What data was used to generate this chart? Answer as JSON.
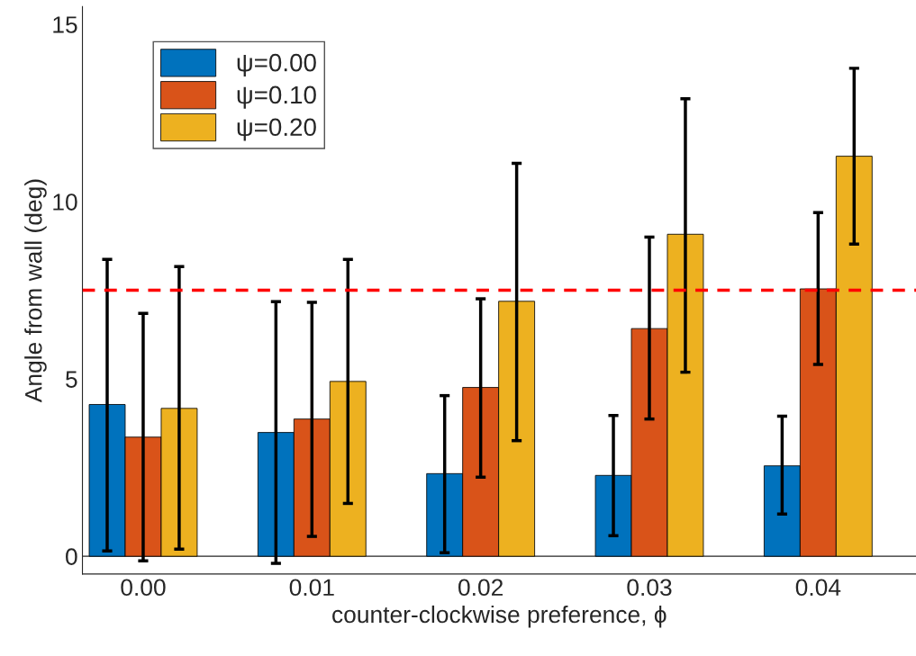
{
  "chart_data": {
    "type": "bar",
    "xlabel": "counter-clockwise preference, ϕ",
    "ylabel": "Angle from wall (deg)",
    "categories": [
      "0.00",
      "0.01",
      "0.02",
      "0.03",
      "0.04"
    ],
    "series": [
      {
        "name": "ψ=0.00",
        "color": "#0072bd",
        "values": [
          4.28,
          3.49,
          2.33,
          2.28,
          2.55
        ],
        "errors": [
          [
            0.15,
            8.37
          ],
          [
            -0.2,
            7.18
          ],
          [
            0.1,
            4.53
          ],
          [
            0.58,
            3.97
          ],
          [
            1.19,
            3.95
          ]
        ]
      },
      {
        "name": "ψ=0.10",
        "color": "#d95319",
        "values": [
          3.36,
          3.87,
          4.76,
          6.42,
          7.54
        ],
        "errors": [
          [
            -0.13,
            6.85
          ],
          [
            0.56,
            7.16
          ],
          [
            2.23,
            7.26
          ],
          [
            3.87,
            9.0
          ],
          [
            5.41,
            9.69
          ]
        ]
      },
      {
        "name": "ψ=0.20",
        "color": "#edb120",
        "values": [
          4.17,
          4.93,
          7.19,
          9.08,
          11.28
        ],
        "errors": [
          [
            0.2,
            8.17
          ],
          [
            1.49,
            8.37
          ],
          [
            3.26,
            11.08
          ],
          [
            5.19,
            12.9
          ],
          [
            8.8,
            13.76
          ]
        ]
      }
    ],
    "ylim": [
      -0.5,
      15.5
    ],
    "yticks": [
      0,
      5,
      10,
      15
    ],
    "grid": false,
    "legend": "top left",
    "ref_lines": [
      {
        "axis": "y",
        "value": 0,
        "color": "#262626",
        "line_style": "solid"
      },
      {
        "axis": "y",
        "value": 7.5,
        "color": "#ff0000",
        "line_style": "dashed"
      }
    ]
  }
}
